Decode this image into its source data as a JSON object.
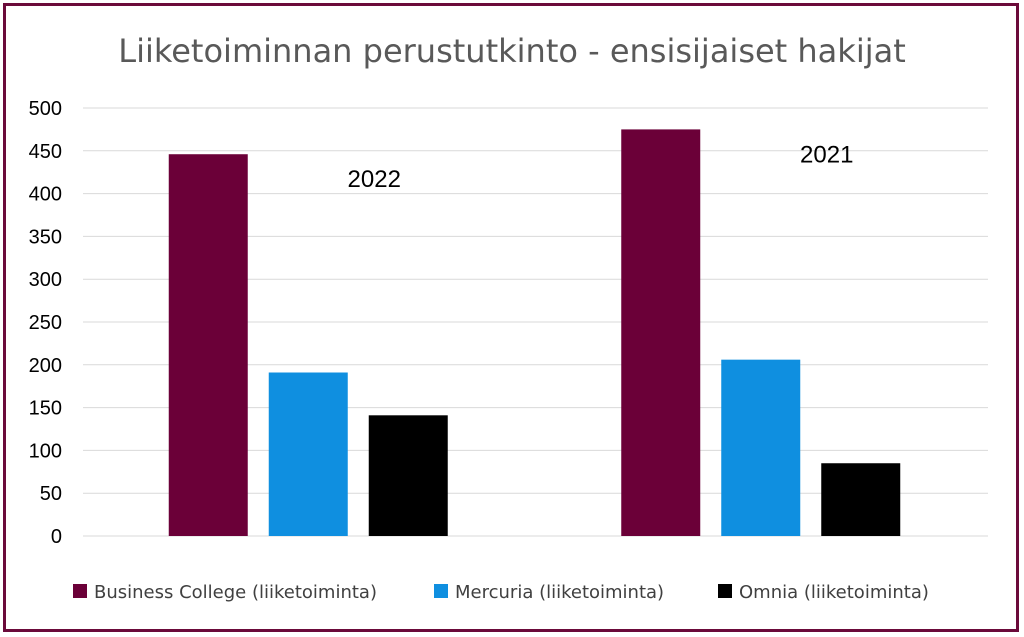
{
  "chart_data": {
    "type": "bar",
    "title": "Liiketoiminnan perustutkinto - ensisijaiset hakijat",
    "xlabel": "",
    "ylabel": "",
    "categories": [
      "2022",
      "2021"
    ],
    "series": [
      {
        "name": "Business College (liiketoiminta)",
        "color": "#6b0038",
        "values": [
          446,
          475
        ]
      },
      {
        "name": "Mercuria (liiketoiminta)",
        "color": "#0f8fe0",
        "values": [
          191,
          206
        ]
      },
      {
        "name": "Omnia (liiketoiminta)",
        "color": "#000000",
        "values": [
          141,
          85
        ]
      }
    ],
    "ylim": [
      0,
      500
    ],
    "yticks": [
      "0",
      "50",
      "100",
      "150",
      "200",
      "250",
      "300",
      "350",
      "400",
      "450",
      "500"
    ],
    "grid": true,
    "legend_position": "bottom",
    "frame_color": "#6b0a3a"
  }
}
